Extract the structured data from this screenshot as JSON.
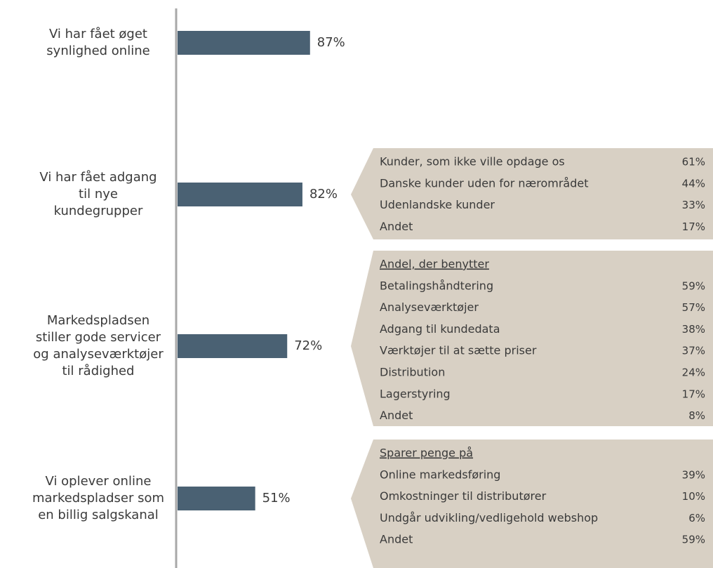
{
  "chart_data": {
    "type": "bar",
    "orientation": "horizontal",
    "categories": [
      "Vi har fået øget\nsynlighed online",
      "Vi har fået adgang\ntil nye\nkundegrupper",
      "Markedspladsen\nstiller gode servicer\nog analyseværktøjer\ntil rådighed",
      "Vi oplever online\nmarkedspladser som\nen billig salgskanal"
    ],
    "values": [
      87,
      82,
      72,
      51
    ],
    "value_labels": [
      "87%",
      "82%",
      "72%",
      "51%"
    ],
    "color": "#4a6173",
    "xlim": [
      0,
      100
    ],
    "breakdowns": [
      null,
      {
        "items": [
          {
            "label": "Kunder, som ikke ville opdage os",
            "value": "61%"
          },
          {
            "label": "Danske kunder uden for nærområdet",
            "value": "44%"
          },
          {
            "label": "Udenlandske kunder",
            "value": "33%"
          },
          {
            "label": "Andet",
            "value": "17%"
          }
        ]
      },
      {
        "heading": "Andel, der benytter",
        "items": [
          {
            "label": "Betalingshåndtering",
            "value": "59%"
          },
          {
            "label": "Analyseværktøjer",
            "value": "57%"
          },
          {
            "label": "Adgang til kundedata",
            "value": "38%"
          },
          {
            "label": "Værktøjer til at sætte priser",
            "value": "37%"
          },
          {
            "label": "Distribution",
            "value": "24%"
          },
          {
            "label": "Lagerstyring",
            "value": "17%"
          },
          {
            "label": "Andet",
            "value": "8%"
          }
        ]
      },
      {
        "heading": "Sparer penge på",
        "items": [
          {
            "label": "Online markedsføring",
            "value": "39%"
          },
          {
            "label": "Omkostninger til distributører",
            "value": "10%"
          },
          {
            "label": "Undgår udvikling/vedligehold webshop",
            "value": "6%"
          },
          {
            "label": "Andet",
            "value": "59%"
          }
        ]
      }
    ]
  }
}
